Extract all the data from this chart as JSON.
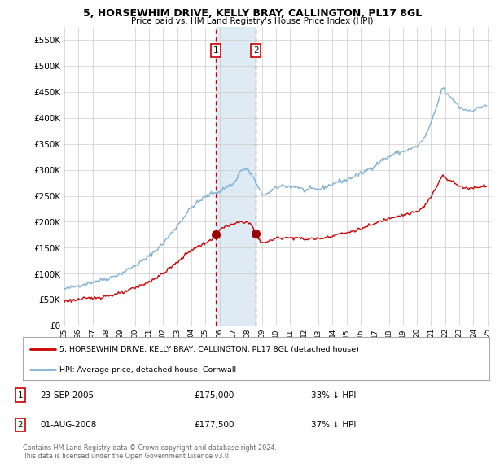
{
  "title": "5, HORSEWHIM DRIVE, KELLY BRAY, CALLINGTON, PL17 8GL",
  "subtitle": "Price paid vs. HM Land Registry's House Price Index (HPI)",
  "legend_line1": "5, HORSEWHIM DRIVE, KELLY BRAY, CALLINGTON, PL17 8GL (detached house)",
  "legend_line2": "HPI: Average price, detached house, Cornwall",
  "table_row1": [
    "1",
    "23-SEP-2005",
    "£175,000",
    "33% ↓ HPI"
  ],
  "table_row2": [
    "2",
    "01-AUG-2008",
    "£177,500",
    "37% ↓ HPI"
  ],
  "footnote": "Contains HM Land Registry data © Crown copyright and database right 2024.\nThis data is licensed under the Open Government Licence v3.0.",
  "hpi_color": "#7eb0d4",
  "price_color": "#cc0000",
  "marker_color": "#990000",
  "shade_color": "#deeaf4",
  "vline_color": "#cc0000",
  "grid_color": "#cccccc",
  "bg_color": "#ffffff",
  "ylim": [
    0,
    575000
  ],
  "yticks": [
    0,
    50000,
    100000,
    150000,
    200000,
    250000,
    300000,
    350000,
    400000,
    450000,
    500000,
    550000
  ],
  "x_start_year": 1995,
  "x_end_year": 2025,
  "sale1_year": 2005.72,
  "sale2_year": 2008.58,
  "sale1_price": 175000,
  "sale2_price": 177500
}
